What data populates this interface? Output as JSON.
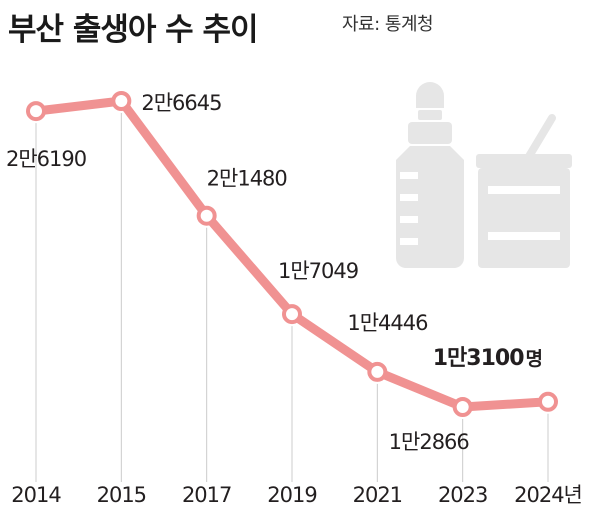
{
  "header": {
    "title": "부산 출생아 수 추이",
    "source": "자료: 통계청"
  },
  "chart_data": {
    "type": "line",
    "title": "부산 출생아 수 추이",
    "x": [
      "2014",
      "2015",
      "2017",
      "2019",
      "2021",
      "2023",
      "2024"
    ],
    "x_tick_labels": [
      "2014",
      "2015",
      "2017",
      "2019",
      "2021",
      "2023",
      "2024년"
    ],
    "series": [
      {
        "values": [
          26190,
          26645,
          21480,
          17049,
          14446,
          12866,
          13100
        ],
        "data_labels": [
          "2만6190",
          "2만6645",
          "2만1480",
          "1만7049",
          "1만4446",
          "1만2866",
          "1만3100"
        ]
      }
    ],
    "unit": "명",
    "ylim": [
      12000,
      27000
    ],
    "grid": false,
    "colors": {
      "line": "#f09292",
      "marker_fill": "#ffffff",
      "guide": "#cccccc",
      "illustration": "#e6e6e6"
    }
  }
}
